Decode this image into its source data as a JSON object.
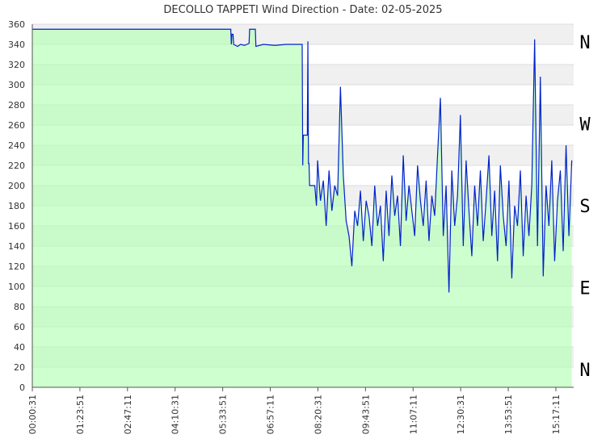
{
  "chart_data": {
    "type": "area-line",
    "title": "DECOLLO TAPPETI Wind Direction - Date: 02-05-2025",
    "x": [
      "00:00:31",
      "05:48:00",
      "05:49:00",
      "05:50:00",
      "05:52:00",
      "05:53:00",
      "06:00:00",
      "06:05:00",
      "06:12:00",
      "06:20:00",
      "06:21:00",
      "06:31:00",
      "06:32:00",
      "06:45:00",
      "07:05:00",
      "07:25:00",
      "07:53:00",
      "07:54:00",
      "07:55:00",
      "08:02:00",
      "08:03:00",
      "08:04:00",
      "08:05:00",
      "08:06:00",
      "08:15:00",
      "08:18:00",
      "08:20:00",
      "08:25:00",
      "08:30:00",
      "08:35:00",
      "08:40:00",
      "08:45:00",
      "08:50:00",
      "08:55:00",
      "09:00:00",
      "09:05:00",
      "09:10:00",
      "09:15:00",
      "09:20:00",
      "09:25:00",
      "09:30:00",
      "09:35:00",
      "09:40:00",
      "09:45:00",
      "09:50:00",
      "09:55:00",
      "10:00:00",
      "10:05:00",
      "10:10:00",
      "10:15:00",
      "10:20:00",
      "10:25:00",
      "10:30:00",
      "10:35:00",
      "10:40:00",
      "10:45:00",
      "10:50:00",
      "10:55:00",
      "11:00:00",
      "11:05:00",
      "11:10:00",
      "11:15:00",
      "11:20:00",
      "11:25:00",
      "11:30:00",
      "11:35:00",
      "11:40:00",
      "11:45:00",
      "11:50:00",
      "11:55:00",
      "12:00:00",
      "12:05:00",
      "12:10:00",
      "12:15:00",
      "12:20:00",
      "12:25:00",
      "12:30:00",
      "12:35:00",
      "12:40:00",
      "12:45:00",
      "12:50:00",
      "12:55:00",
      "13:00:00",
      "13:05:00",
      "13:10:00",
      "13:15:00",
      "13:20:00",
      "13:25:00",
      "13:30:00",
      "13:35:00",
      "13:40:00",
      "13:45:00",
      "13:50:00",
      "13:55:00",
      "14:00:00",
      "14:05:00",
      "14:10:00",
      "14:15:00",
      "14:20:00",
      "14:25:00",
      "14:30:00",
      "14:35:00",
      "14:40:00",
      "14:45:00",
      "14:50:00",
      "14:55:00",
      "15:00:00",
      "15:05:00",
      "15:10:00",
      "15:15:00",
      "15:20:00",
      "15:25:00",
      "15:30:00",
      "15:35:00",
      "15:40:00",
      "15:45:00"
    ],
    "series": [
      {
        "color": "#0022cc",
        "area_color": "#b3ffb3",
        "values": [
          355,
          355,
          340,
          350,
          350,
          340,
          338,
          340,
          339,
          341,
          355,
          355,
          338,
          340,
          339,
          340,
          340,
          220,
          250,
          250,
          343,
          222,
          222,
          200,
          200,
          180,
          225,
          185,
          205,
          160,
          215,
          175,
          200,
          190,
          298,
          210,
          165,
          150,
          120,
          175,
          160,
          195,
          145,
          185,
          170,
          140,
          200,
          160,
          180,
          125,
          195,
          150,
          210,
          170,
          190,
          140,
          230,
          165,
          200,
          175,
          150,
          220,
          185,
          160,
          205,
          145,
          190,
          170,
          230,
          287,
          150,
          200,
          94,
          215,
          160,
          190,
          270,
          140,
          225,
          175,
          130,
          200,
          160,
          215,
          145,
          185,
          230,
          150,
          195,
          125,
          220,
          170,
          140,
          205,
          108,
          180,
          160,
          215,
          130,
          190,
          150,
          200,
          345,
          140,
          308,
          110,
          200,
          160,
          225,
          125,
          185,
          215,
          135,
          240,
          150,
          225
        ]
      }
    ],
    "xlim": [
      "00:00:31",
      "15:48:21"
    ],
    "xticks": [
      "00:00:31",
      "01:23:51",
      "02:47:11",
      "04:10:31",
      "05:33:51",
      "06:57:11",
      "08:20:31",
      "09:43:51",
      "11:07:11",
      "12:30:31",
      "13:53:51",
      "15:17:11"
    ],
    "ylim": [
      0,
      360
    ],
    "yticks": [
      0,
      20,
      40,
      60,
      80,
      100,
      120,
      140,
      160,
      180,
      200,
      220,
      240,
      260,
      280,
      300,
      320,
      340,
      360
    ],
    "grid": true,
    "compass": [
      {
        "label": "N",
        "value": 360
      },
      {
        "label": "W",
        "value": 270
      },
      {
        "label": "S",
        "value": 180
      },
      {
        "label": "E",
        "value": 90
      },
      {
        "label": "N",
        "value": 0
      }
    ]
  }
}
